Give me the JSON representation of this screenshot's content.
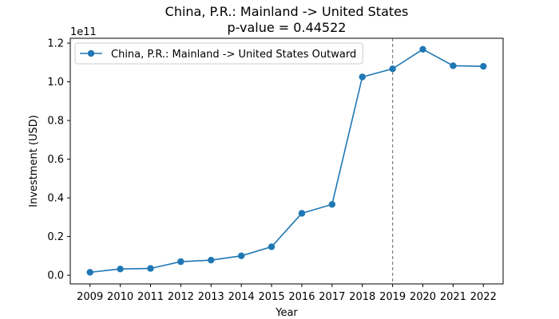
{
  "chart_data": {
    "type": "line",
    "title": "China, P.R.: Mainland -> United States",
    "subtitle": "p-value = 0.44522",
    "xlabel": "Year",
    "ylabel": "Investment (USD)",
    "offset_text": "1e11",
    "categories": [
      "2009",
      "2010",
      "2011",
      "2012",
      "2013",
      "2014",
      "2015",
      "2016",
      "2017",
      "2018",
      "2019",
      "2020",
      "2021",
      "2022"
    ],
    "series": [
      {
        "name": "China, P.R.: Mainland -> United States Outward",
        "color": "#1f77b4",
        "values": [
          1500000000.0,
          3200000000.0,
          3500000000.0,
          7000000000.0,
          7800000000.0,
          10000000000.0,
          14700000000.0,
          32000000000.0,
          36600000000.0,
          102500000000.0,
          106700000000.0,
          116800000000.0,
          108300000000.0,
          108000000000.0
        ]
      }
    ],
    "ylim": [
      -4500000000.0,
      122500000000.0
    ],
    "yticks": [
      0.0,
      20000000000.0,
      40000000000.0,
      60000000000.0,
      80000000000.0,
      100000000000.0,
      120000000000.0
    ],
    "ytick_labels": [
      "0.0",
      "0.2",
      "0.4",
      "0.6",
      "0.8",
      "1.0",
      "1.2"
    ],
    "vline": {
      "x": "2019",
      "color": "#808080",
      "style": "dashed"
    },
    "legend_position": "top-left",
    "grid": false
  }
}
